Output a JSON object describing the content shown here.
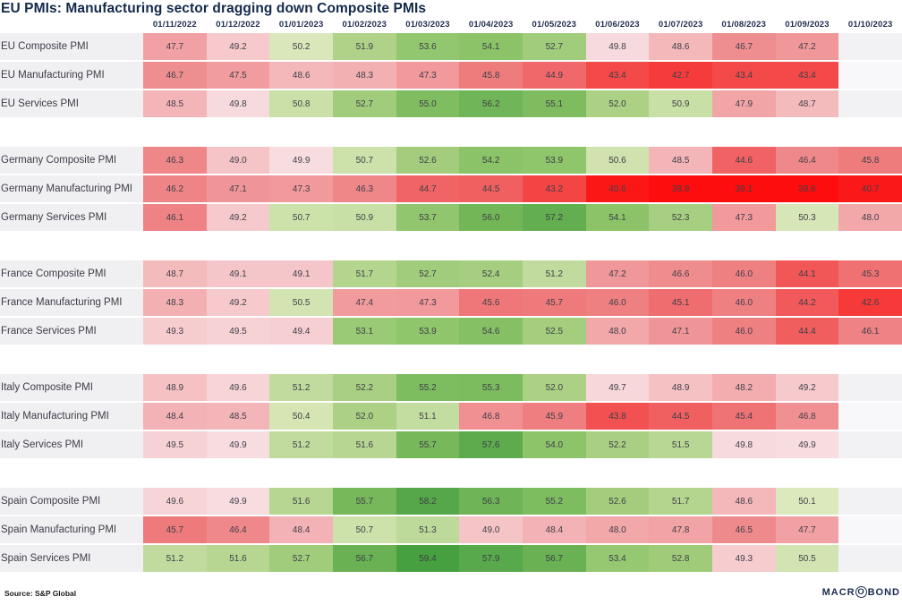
{
  "title": "EU PMIs: Manufacturing sector dragging down Composite PMIs",
  "source_note": "Source: S&P Global",
  "logo": {
    "pre": "MACR",
    "o": "O",
    "post": "BOND"
  },
  "colors": {
    "title_text": "#13294b",
    "header_text": "#1d2b4e",
    "label_bg": "#f0f0f3",
    "label_text": "#3c3d46",
    "cell_text": "#3e3f49",
    "empty_cell_a": "#f2f2f5",
    "empty_cell_b": "#f8f8fa",
    "logo_color": "#1b2b50",
    "red_stops": [
      [
        40,
        [
          253,
          13,
          13
        ]
      ],
      [
        42,
        [
          248,
          45,
          45
        ]
      ],
      [
        44,
        [
          241,
          85,
          85
        ]
      ],
      [
        46,
        [
          238,
          128,
          130
        ]
      ],
      [
        48,
        [
          242,
          167,
          169
        ]
      ],
      [
        50,
        [
          248,
          224,
          227
        ]
      ]
    ],
    "green_stops": [
      [
        50,
        [
          223,
          234,
          192
        ]
      ],
      [
        52,
        [
          172,
          209,
          133
        ]
      ],
      [
        54,
        [
          141,
          196,
          106
        ]
      ],
      [
        56,
        [
          115,
          182,
          88
        ]
      ],
      [
        58,
        [
          87,
          168,
          74
        ]
      ],
      [
        60,
        [
          64,
          156,
          60
        ]
      ]
    ]
  },
  "chart_data": {
    "type": "heatmap",
    "title": "EU PMIs: Manufacturing sector dragging down Composite PMIs",
    "legend_position": "none",
    "grid": false,
    "columns": [
      "01/11/2022",
      "01/12/2022",
      "01/01/2023",
      "01/02/2023",
      "01/03/2023",
      "01/04/2023",
      "01/05/2023",
      "01/06/2023",
      "01/07/2023",
      "01/08/2023",
      "01/09/2023",
      "01/10/2023"
    ],
    "groups": [
      {
        "country": "EU",
        "rows": [
          {
            "label": "EU Composite PMI",
            "values": [
              47.7,
              49.2,
              50.2,
              51.9,
              53.6,
              54.1,
              52.7,
              49.8,
              48.6,
              46.7,
              47.2,
              null
            ]
          },
          {
            "label": "EU Manufacturing PMI",
            "values": [
              46.7,
              47.5,
              48.6,
              48.3,
              47.3,
              45.8,
              44.9,
              43.4,
              42.7,
              43.4,
              43.4,
              null
            ]
          },
          {
            "label": "EU Services PMI",
            "values": [
              48.5,
              49.8,
              50.8,
              52.7,
              55.0,
              56.2,
              55.1,
              52.0,
              50.9,
              47.9,
              48.7,
              null
            ]
          }
        ]
      },
      {
        "country": "Germany",
        "rows": [
          {
            "label": "Germany Composite PMI",
            "values": [
              46.3,
              49.0,
              49.9,
              50.7,
              52.6,
              54.2,
              53.9,
              50.6,
              48.5,
              44.6,
              46.4,
              45.8
            ]
          },
          {
            "label": "Germany Manufacturing PMI",
            "values": [
              46.2,
              47.1,
              47.3,
              46.3,
              44.7,
              44.5,
              43.2,
              40.6,
              38.8,
              39.1,
              39.6,
              40.7
            ]
          },
          {
            "label": "Germany Services PMI",
            "values": [
              46.1,
              49.2,
              50.7,
              50.9,
              53.7,
              56.0,
              57.2,
              54.1,
              52.3,
              47.3,
              50.3,
              48.0
            ]
          }
        ]
      },
      {
        "country": "France",
        "rows": [
          {
            "label": "France Composite PMI",
            "values": [
              48.7,
              49.1,
              49.1,
              51.7,
              52.7,
              52.4,
              51.2,
              47.2,
              46.6,
              46.0,
              44.1,
              45.3
            ]
          },
          {
            "label": "France Manufacturing PMI",
            "values": [
              48.3,
              49.2,
              50.5,
              47.4,
              47.3,
              45.6,
              45.7,
              46.0,
              45.1,
              46.0,
              44.2,
              42.6
            ]
          },
          {
            "label": "France Services PMI",
            "values": [
              49.3,
              49.5,
              49.4,
              53.1,
              53.9,
              54.6,
              52.5,
              48.0,
              47.1,
              46.0,
              44.4,
              46.1
            ]
          }
        ]
      },
      {
        "country": "Italy",
        "rows": [
          {
            "label": "Italy Composite PMI",
            "values": [
              48.9,
              49.6,
              51.2,
              52.2,
              55.2,
              55.3,
              52.0,
              49.7,
              48.9,
              48.2,
              49.2,
              null
            ]
          },
          {
            "label": "Italy Manufacturing PMI",
            "values": [
              48.4,
              48.5,
              50.4,
              52.0,
              51.1,
              46.8,
              45.9,
              43.8,
              44.5,
              45.4,
              46.8,
              null
            ]
          },
          {
            "label": "Italy Services PMI",
            "values": [
              49.5,
              49.9,
              51.2,
              51.6,
              55.7,
              57.6,
              54.0,
              52.2,
              51.5,
              49.8,
              49.9,
              null
            ]
          }
        ]
      },
      {
        "country": "Spain",
        "rows": [
          {
            "label": "Spain Composite PMI",
            "values": [
              49.6,
              49.9,
              51.6,
              55.7,
              58.2,
              56.3,
              55.2,
              52.6,
              51.7,
              48.6,
              50.1,
              null
            ]
          },
          {
            "label": "Spain Manufacturing PMI",
            "values": [
              45.7,
              46.4,
              48.4,
              50.7,
              51.3,
              49.0,
              48.4,
              48.0,
              47.8,
              46.5,
              47.7,
              null
            ]
          },
          {
            "label": "Spain Services PMI",
            "values": [
              51.2,
              51.6,
              52.7,
              56.7,
              59.4,
              57.9,
              56.7,
              53.4,
              52.8,
              49.3,
              50.5,
              null
            ]
          }
        ]
      }
    ]
  }
}
